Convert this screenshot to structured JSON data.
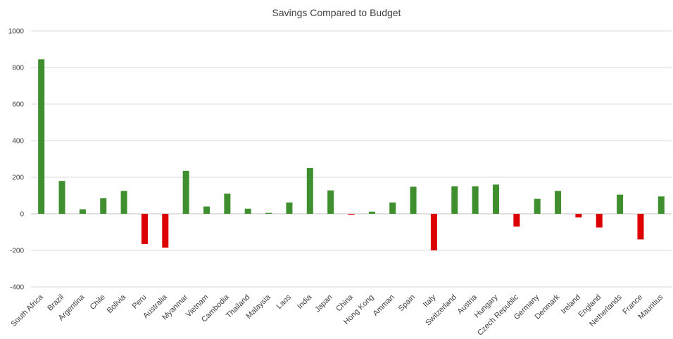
{
  "chart_data": {
    "type": "bar",
    "title": "Savings Compared to Budget",
    "xlabel": "",
    "ylabel": "",
    "ylim": [
      -400,
      1000
    ],
    "yticks": [
      -400,
      -200,
      0,
      200,
      400,
      600,
      800,
      1000
    ],
    "grid": true,
    "legend": "none",
    "colors": {
      "positive": "#3f8f2f",
      "negative": "#dd0000",
      "grid": "#d9d9d9",
      "axis": "#bfbfbf"
    },
    "categories": [
      "South Africa",
      "Brazil",
      "Argentina",
      "Chile",
      "Bolivia",
      "Peru",
      "Australia",
      "Myanmar",
      "Vietnam",
      "Cambodia",
      "Thailand",
      "Malaysia",
      "Laos",
      "India",
      "Japan",
      "China",
      "Hong Kong",
      "Amman",
      "Spain",
      "Italy",
      "Switzerland",
      "Austria",
      "Hungary",
      "Czech Republic",
      "Germany",
      "Denmark",
      "Ireland",
      "England",
      "Netherlands",
      "France",
      "Mauritius"
    ],
    "values": [
      845,
      180,
      25,
      85,
      125,
      -165,
      -185,
      235,
      40,
      110,
      28,
      5,
      62,
      250,
      128,
      -5,
      12,
      62,
      148,
      -200,
      150,
      150,
      160,
      -70,
      82,
      125,
      -20,
      -75,
      105,
      -140,
      95
    ]
  }
}
